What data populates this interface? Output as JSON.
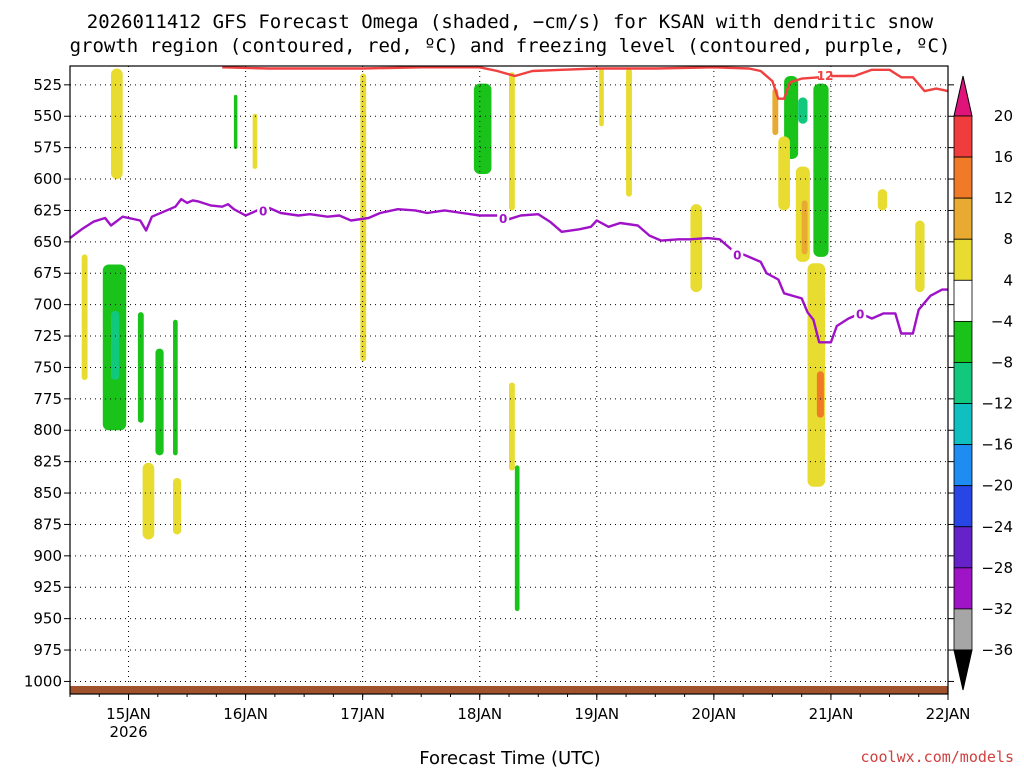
{
  "chart_data": {
    "type": "heatmap",
    "title": "2026011412 GFS Forecast Omega (shaded, −cm/s) for KSAN with dendritic snow growth region (contoured, red, ºC) and freezing level (contoured, purple, ºC)",
    "title_lines": [
      "2026011412 GFS Forecast Omega (shaded, −cm/s) for KSAN with dendritic snow",
      "growth region (contoured, red, ºC) and freezing level (contoured, purple, ºC)"
    ],
    "xlabel": "Forecast Time (UTC)",
    "ylabel": "",
    "y_ticks": [
      525,
      550,
      575,
      600,
      625,
      650,
      675,
      700,
      725,
      750,
      775,
      800,
      825,
      850,
      875,
      900,
      925,
      950,
      975,
      1000
    ],
    "y_range": [
      1010,
      510
    ],
    "x_ticks": [
      {
        "day": 15,
        "label": "15JAN",
        "sub": "2026"
      },
      {
        "day": 16,
        "label": "16JAN",
        "sub": ""
      },
      {
        "day": 17,
        "label": "17JAN",
        "sub": ""
      },
      {
        "day": 18,
        "label": "18JAN",
        "sub": ""
      },
      {
        "day": 19,
        "label": "19JAN",
        "sub": ""
      },
      {
        "day": 20,
        "label": "20JAN",
        "sub": ""
      },
      {
        "day": 21,
        "label": "21JAN",
        "sub": ""
      },
      {
        "day": 22,
        "label": "22JAN",
        "sub": ""
      }
    ],
    "x_range": [
      14.5,
      22.0
    ],
    "grid": true,
    "colorbar": {
      "labels": [
        "20",
        "16",
        "12",
        "8",
        "4",
        "−4",
        "−8",
        "−12",
        "−16",
        "−20",
        "−24",
        "−28",
        "−32",
        "−36"
      ],
      "colors": [
        "#e0137a",
        "#f03c3c",
        "#f07a28",
        "#e8aa30",
        "#e8dc30",
        "#ffffff",
        "#19c319",
        "#12c87c",
        "#10c0c0",
        "#1e8cf0",
        "#2846e6",
        "#6422c8",
        "#a014c8",
        "#a6a6a6",
        "#000000"
      ]
    },
    "freezing_level": {
      "color": "#a012c8",
      "contour_label": "0",
      "points": [
        [
          14.5,
          647
        ],
        [
          14.6,
          640
        ],
        [
          14.7,
          634
        ],
        [
          14.8,
          631
        ],
        [
          14.85,
          637
        ],
        [
          14.95,
          630
        ],
        [
          15.1,
          633
        ],
        [
          15.15,
          641
        ],
        [
          15.2,
          630
        ],
        [
          15.3,
          626
        ],
        [
          15.4,
          622
        ],
        [
          15.45,
          616
        ],
        [
          15.5,
          619
        ],
        [
          15.55,
          617
        ],
        [
          15.6,
          618
        ],
        [
          15.7,
          621
        ],
        [
          15.8,
          622
        ],
        [
          15.85,
          620
        ],
        [
          15.9,
          624
        ],
        [
          16.0,
          629
        ],
        [
          16.1,
          625
        ],
        [
          16.2,
          623
        ],
        [
          16.3,
          627
        ],
        [
          16.45,
          629
        ],
        [
          16.55,
          628
        ],
        [
          16.7,
          630
        ],
        [
          16.8,
          629
        ],
        [
          16.9,
          633
        ],
        [
          17.05,
          631
        ],
        [
          17.15,
          627
        ],
        [
          17.3,
          624
        ],
        [
          17.45,
          625
        ],
        [
          17.55,
          627
        ],
        [
          17.7,
          625
        ],
        [
          17.85,
          627
        ],
        [
          18.0,
          629
        ],
        [
          18.15,
          629
        ],
        [
          18.25,
          632
        ],
        [
          18.35,
          629
        ],
        [
          18.5,
          628
        ],
        [
          18.6,
          634
        ],
        [
          18.7,
          642
        ],
        [
          18.85,
          640
        ],
        [
          18.95,
          638
        ],
        [
          19.0,
          633
        ],
        [
          19.1,
          638
        ],
        [
          19.2,
          635
        ],
        [
          19.35,
          637
        ],
        [
          19.45,
          645
        ],
        [
          19.55,
          649
        ],
        [
          19.7,
          648
        ],
        [
          19.8,
          648
        ],
        [
          19.95,
          647
        ],
        [
          20.05,
          648
        ],
        [
          20.15,
          656
        ],
        [
          20.3,
          662
        ],
        [
          20.4,
          666
        ],
        [
          20.45,
          675
        ],
        [
          20.55,
          680
        ],
        [
          20.6,
          691
        ],
        [
          20.75,
          695
        ],
        [
          20.8,
          706
        ],
        [
          20.85,
          712
        ],
        [
          20.9,
          730
        ],
        [
          21.0,
          730
        ],
        [
          21.05,
          717
        ],
        [
          21.15,
          711
        ],
        [
          21.25,
          707
        ],
        [
          21.35,
          711
        ],
        [
          21.45,
          707
        ],
        [
          21.55,
          707
        ],
        [
          21.6,
          723
        ],
        [
          21.7,
          723
        ],
        [
          21.75,
          704
        ],
        [
          21.85,
          693
        ],
        [
          21.95,
          688
        ],
        [
          22.0,
          688
        ]
      ]
    },
    "dendritic_region": {
      "color": "#f04040",
      "contour_label": "12",
      "points": [
        [
          15.8,
          511
        ],
        [
          16.2,
          512
        ],
        [
          16.5,
          512
        ],
        [
          17.0,
          512
        ],
        [
          17.5,
          511
        ],
        [
          18.0,
          511
        ],
        [
          18.15,
          514
        ],
        [
          18.3,
          518
        ],
        [
          18.45,
          514
        ],
        [
          18.7,
          513
        ],
        [
          19.0,
          512
        ],
        [
          19.5,
          512
        ],
        [
          20.0,
          511
        ],
        [
          20.3,
          512
        ],
        [
          20.4,
          514
        ],
        [
          20.5,
          522
        ],
        [
          20.55,
          536
        ],
        [
          20.6,
          536
        ],
        [
          20.65,
          523
        ],
        [
          20.75,
          520
        ],
        [
          20.9,
          519
        ],
        [
          21.0,
          518
        ],
        [
          21.2,
          518
        ],
        [
          21.35,
          513
        ],
        [
          21.5,
          513
        ],
        [
          21.6,
          519
        ],
        [
          21.7,
          519
        ],
        [
          21.8,
          530
        ],
        [
          21.9,
          528
        ],
        [
          22.0,
          530
        ]
      ]
    },
    "omega_regions": [
      {
        "value": 6,
        "x": [
          14.85,
          14.95
        ],
        "p": [
          512,
          600
        ]
      },
      {
        "value": 5,
        "x": [
          14.6,
          14.65
        ],
        "p": [
          660,
          760
        ]
      },
      {
        "value": -6,
        "x": [
          14.78,
          14.98
        ],
        "p": [
          668,
          800
        ]
      },
      {
        "value": -9,
        "x": [
          14.85,
          14.92
        ],
        "p": [
          705,
          760
        ]
      },
      {
        "value": -6,
        "x": [
          15.08,
          15.13
        ],
        "p": [
          706,
          794
        ]
      },
      {
        "value": -6,
        "x": [
          15.23,
          15.3
        ],
        "p": [
          735,
          820
        ]
      },
      {
        "value": 5,
        "x": [
          15.12,
          15.22
        ],
        "p": [
          826,
          887
        ]
      },
      {
        "value": 5,
        "x": [
          15.38,
          15.45
        ],
        "p": [
          838,
          883
        ]
      },
      {
        "value": -6,
        "x": [
          15.38,
          15.42
        ],
        "p": [
          712,
          820
        ]
      },
      {
        "value": -6,
        "x": [
          15.9,
          15.93
        ],
        "p": [
          533,
          576
        ]
      },
      {
        "value": 5,
        "x": [
          16.06,
          16.1
        ],
        "p": [
          548,
          592
        ]
      },
      {
        "value": 5,
        "x": [
          16.98,
          17.03
        ],
        "p": [
          516,
          745
        ]
      },
      {
        "value": -6,
        "x": [
          17.95,
          18.1
        ],
        "p": [
          524,
          596
        ]
      },
      {
        "value": 5,
        "x": [
          18.25,
          18.3
        ],
        "p": [
          515,
          625
        ]
      },
      {
        "value": 5,
        "x": [
          18.25,
          18.3
        ],
        "p": [
          762,
          832
        ]
      },
      {
        "value": -6,
        "x": [
          18.3,
          18.34
        ],
        "p": [
          828,
          944
        ]
      },
      {
        "value": 5,
        "x": [
          19.02,
          19.06
        ],
        "p": [
          512,
          558
        ]
      },
      {
        "value": 5,
        "x": [
          19.25,
          19.3
        ],
        "p": [
          512,
          614
        ]
      },
      {
        "value": 5,
        "x": [
          19.8,
          19.9
        ],
        "p": [
          620,
          690
        ]
      },
      {
        "value": -6,
        "x": [
          20.6,
          20.72
        ],
        "p": [
          518,
          584
        ]
      },
      {
        "value": 5,
        "x": [
          20.55,
          20.65
        ],
        "p": [
          566,
          625
        ]
      },
      {
        "value": -6,
        "x": [
          20.85,
          20.98
        ],
        "p": [
          524,
          662
        ]
      },
      {
        "value": -9,
        "x": [
          20.72,
          20.8
        ],
        "p": [
          535,
          556
        ]
      },
      {
        "value": 5,
        "x": [
          20.7,
          20.82
        ],
        "p": [
          590,
          666
        ]
      },
      {
        "value": 9,
        "x": [
          20.75,
          20.8
        ],
        "p": [
          617,
          660
        ]
      },
      {
        "value": 5,
        "x": [
          20.8,
          20.95
        ],
        "p": [
          667,
          845
        ]
      },
      {
        "value": 13,
        "x": [
          20.88,
          20.94
        ],
        "p": [
          753,
          790
        ]
      },
      {
        "value": 5,
        "x": [
          21.4,
          21.48
        ],
        "p": [
          608,
          625
        ]
      },
      {
        "value": 5,
        "x": [
          21.72,
          21.8
        ],
        "p": [
          633,
          690
        ]
      },
      {
        "value": 10,
        "x": [
          20.5,
          20.55
        ],
        "p": [
          528,
          565
        ]
      }
    ],
    "terrain_color": "#a0522d"
  },
  "credit": "coolwx.com/models"
}
